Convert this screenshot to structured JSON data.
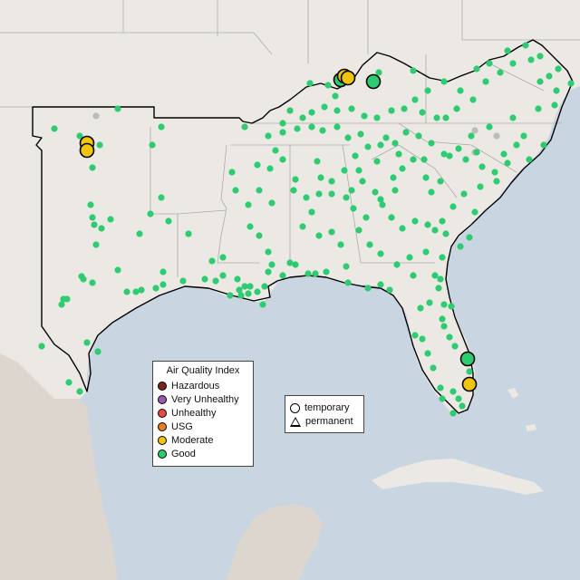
{
  "map": {
    "colors": {
      "ocean": "#c9d6e2",
      "land": "#ece9e5",
      "mexico_terrain": "#ddd6cf",
      "state_border": "#aaaaaa",
      "region_outline": "#000000",
      "good": "#2ecc71",
      "moderate": "#f1c40f",
      "unhealthy_sensitive": "#e67e22",
      "unhealthy": "#e74c3c",
      "very_unhealthy": "#9b59b6",
      "hazardous": "#7b241c",
      "no_data": "#bbbbbb"
    },
    "aqi_legend": {
      "title": "Air Quality Index",
      "items": [
        {
          "label": "Hazardous",
          "color": "#7b241c"
        },
        {
          "label": "Very Unhealthy",
          "color": "#9b59b6"
        },
        {
          "label": "Unhealthy",
          "color": "#e74c3c"
        },
        {
          "label": "USG",
          "color": "#e67e22"
        },
        {
          "label": "Moderate",
          "color": "#f1c40f"
        },
        {
          "label": "Good",
          "color": "#2ecc71"
        }
      ]
    },
    "monitor_type_legend": {
      "items": [
        {
          "label": "temporary",
          "shape": "circle"
        },
        {
          "label": "permanent",
          "shape": "triangle"
        }
      ]
    }
  }
}
